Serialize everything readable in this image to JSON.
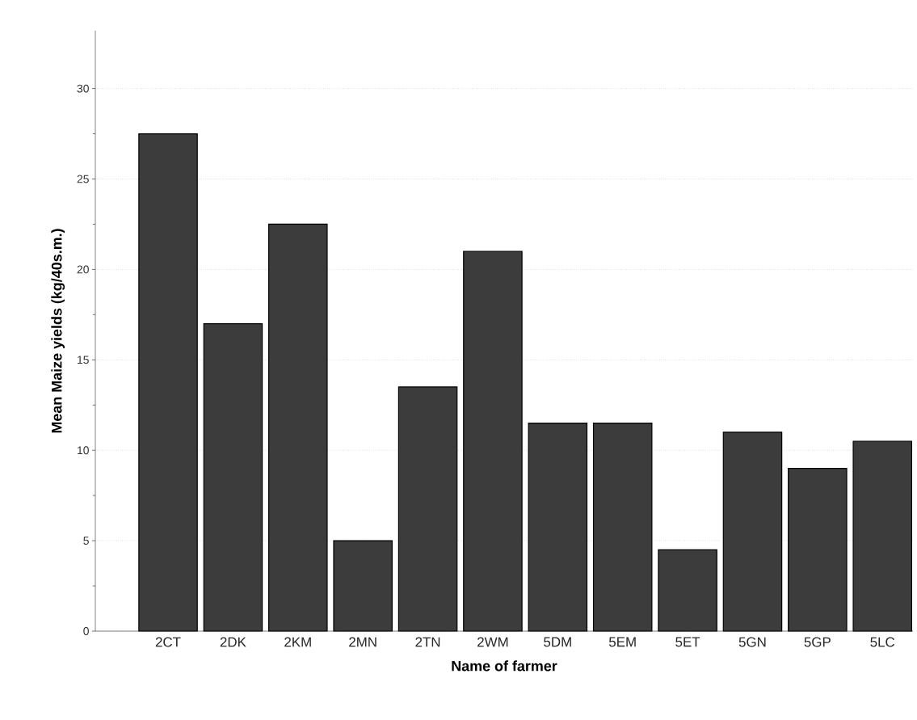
{
  "chart_data": {
    "type": "bar",
    "xlabel": "Name of farmer",
    "ylabel": "Mean Maize yields (kg/40s.m.)",
    "categories": [
      "2CT",
      "2DK",
      "2KM",
      "2MN",
      "2TN",
      "2WM",
      "5DM",
      "5EM",
      "5ET",
      "5GN",
      "5GP",
      "5LC"
    ],
    "values": [
      27.5,
      17,
      22.5,
      5,
      13.5,
      21,
      11.5,
      11.5,
      4.5,
      11,
      9,
      10.5
    ],
    "color": "#3c3c3c",
    "ylim": [
      0,
      33.2
    ],
    "yticks": [
      0,
      5,
      10,
      15,
      20,
      25,
      30
    ],
    "grid": "y"
  }
}
